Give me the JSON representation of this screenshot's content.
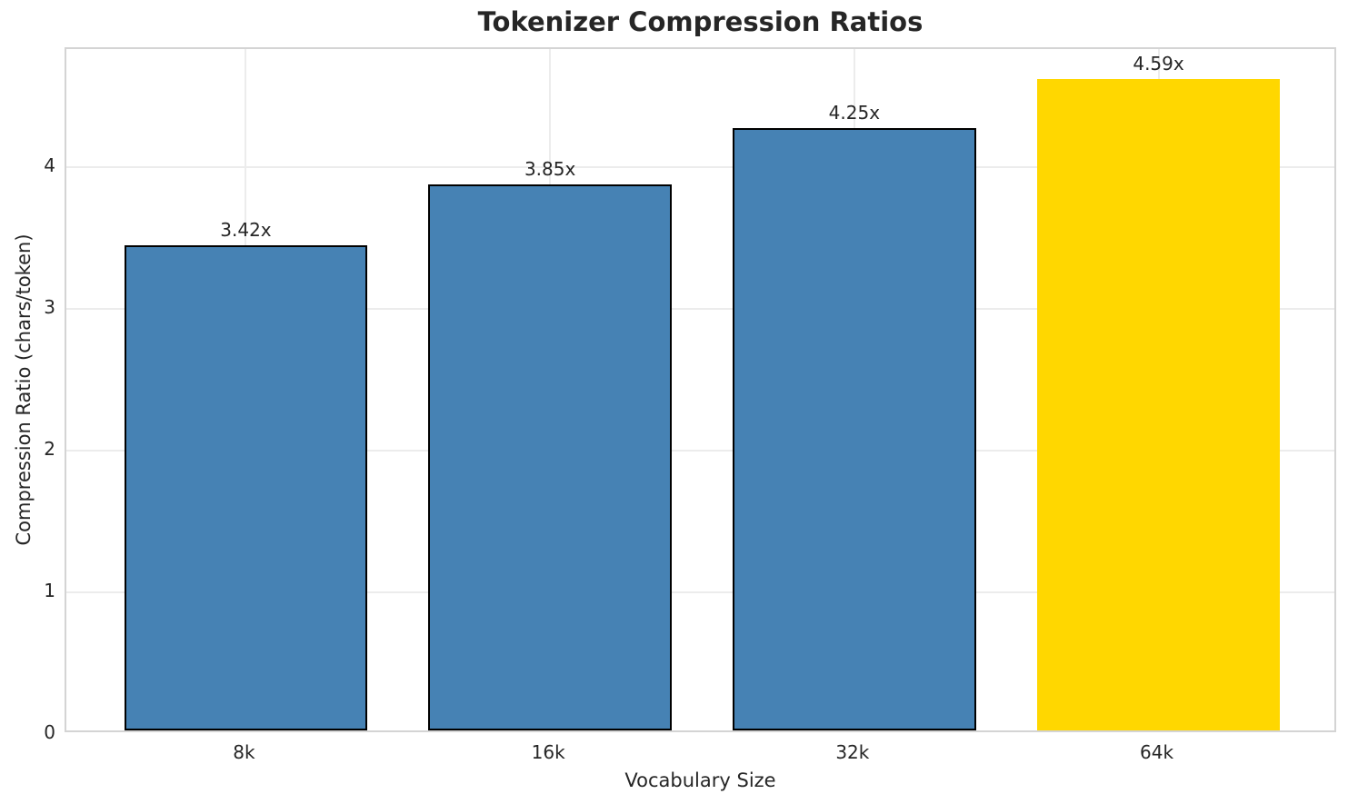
{
  "chart_data": {
    "type": "bar",
    "title": "Tokenizer Compression Ratios",
    "xlabel": "Vocabulary Size",
    "ylabel": "Compression Ratio (chars/token)",
    "categories": [
      "8k",
      "16k",
      "32k",
      "64k"
    ],
    "values": [
      3.42,
      3.85,
      4.25,
      4.59
    ],
    "value_labels": [
      "3.42x",
      "3.85x",
      "4.25x",
      "4.59x"
    ],
    "yticks": [
      0,
      1,
      2,
      3,
      4
    ],
    "ylim": [
      0,
      4.83
    ],
    "grid": true,
    "legend": false,
    "bar_width_fraction": 0.8,
    "highlight_index": 3,
    "colors": {
      "bar": "#4682B4",
      "highlight_bar": "#FFD700",
      "bar_edge": "#000000",
      "grid": "#ececec",
      "spine": "#d4d4d4",
      "text": "#262626"
    }
  }
}
